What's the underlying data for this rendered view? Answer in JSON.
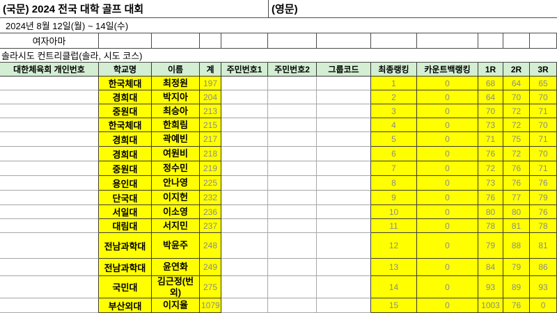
{
  "titles": {
    "ko": "(국문) 2024 전국 대학 골프 대회",
    "en": "(영문)"
  },
  "info": {
    "date_range": "2024년 8월 12일(월) ~ 14일(수)",
    "division": "여자아마",
    "course": "솔라시도 컨트리클럽(솔라, 시도 코스)"
  },
  "colors": {
    "header_bg": "#d3eed3",
    "highlight_bg": "#ffff00",
    "number_text": "#8b8b8b",
    "bold_text": "#000000"
  },
  "table": {
    "headers": [
      "대한체육회 개인번호",
      "학교명",
      "이름",
      "계",
      "주민번호1",
      "주민번호2",
      "그룹코드",
      "최종랭킹",
      "카운트백랭킹",
      "1R",
      "2R",
      "3R"
    ],
    "rows": [
      {
        "school": "한국체대",
        "name": "최정원",
        "total": 197,
        "rank": 1,
        "countback": 0,
        "r1": 68,
        "r2": 64,
        "r3": 65
      },
      {
        "school": "경희대",
        "name": "박지아",
        "total": 204,
        "rank": 2,
        "countback": 0,
        "r1": 64,
        "r2": 70,
        "r3": 70
      },
      {
        "school": "중원대",
        "name": "최승아",
        "total": 213,
        "rank": 3,
        "countback": 0,
        "r1": 70,
        "r2": 72,
        "r3": 71
      },
      {
        "school": "한국체대",
        "name": "한희림",
        "total": 215,
        "rank": 4,
        "countback": 0,
        "r1": 73,
        "r2": 72,
        "r3": 70
      },
      {
        "school": "경희대",
        "name": "곽예빈",
        "total": 217,
        "rank": 5,
        "countback": 0,
        "r1": 71,
        "r2": 75,
        "r3": 71
      },
      {
        "school": "경희대",
        "name": "여원비",
        "total": 218,
        "rank": 6,
        "countback": 0,
        "r1": 76,
        "r2": 72,
        "r3": 70
      },
      {
        "school": "중원대",
        "name": "정수민",
        "total": 219,
        "rank": 7,
        "countback": 0,
        "r1": 72,
        "r2": 76,
        "r3": 71
      },
      {
        "school": "용인대",
        "name": "안나영",
        "total": 225,
        "rank": 8,
        "countback": 0,
        "r1": 73,
        "r2": 76,
        "r3": 76
      },
      {
        "school": "단국대",
        "name": "이지헌",
        "total": 232,
        "rank": 9,
        "countback": 0,
        "r1": 76,
        "r2": 77,
        "r3": 79
      },
      {
        "school": "서일대",
        "name": "이소영",
        "total": 236,
        "rank": 10,
        "countback": 0,
        "r1": 80,
        "r2": 80,
        "r3": 76
      },
      {
        "school": "대림대",
        "name": "서지민",
        "total": 237,
        "rank": 11,
        "countback": 0,
        "r1": 78,
        "r2": 81,
        "r3": 78
      },
      {
        "school": "전남과학대",
        "name": "박윤주",
        "total": 248,
        "rank": 12,
        "countback": 0,
        "r1": 79,
        "r2": 88,
        "r3": 81
      },
      {
        "school": "전남과학대",
        "name": "윤연화",
        "total": 249,
        "rank": 13,
        "countback": 0,
        "r1": 84,
        "r2": 79,
        "r3": 86
      },
      {
        "school": "국민대",
        "name": "김근정(번외)",
        "total": 275,
        "rank": 14,
        "countback": 0,
        "r1": 93,
        "r2": 89,
        "r3": 93
      },
      {
        "school": "부산외대",
        "name": "이지율",
        "total": 1079,
        "rank": 15,
        "countback": 0,
        "r1": 1003,
        "r2": 76,
        "r3": 0
      }
    ]
  }
}
